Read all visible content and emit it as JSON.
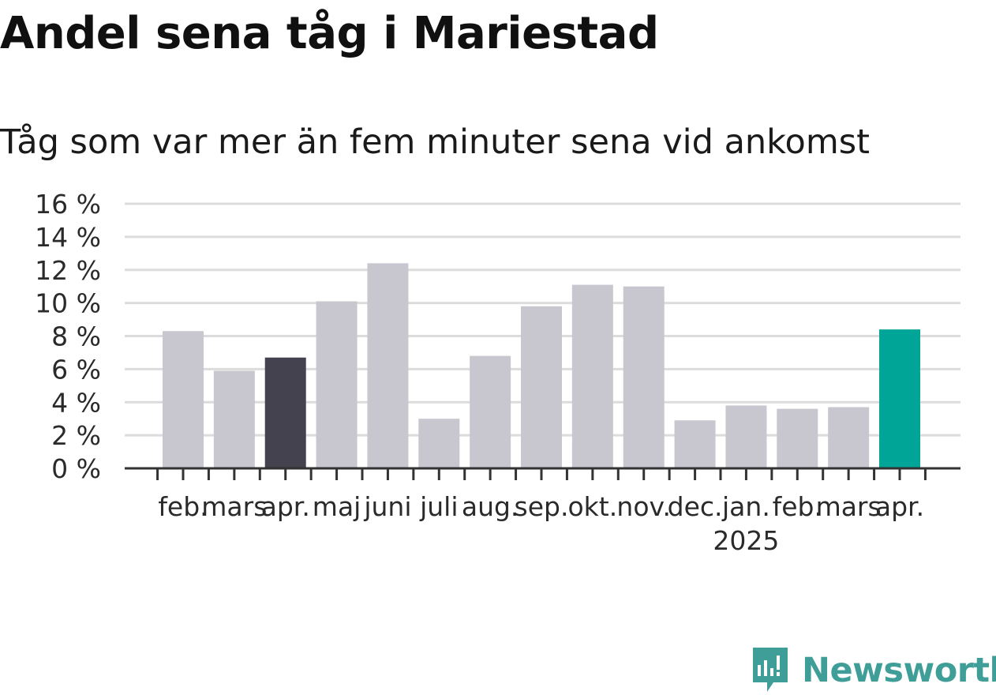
{
  "chart_data": {
    "type": "bar",
    "title": "Andel sena tåg i Mariestad",
    "subtitle": "Tåg som var mer än fem minuter sena vid ankomst",
    "categories": [
      "feb.",
      "mars",
      "apr.",
      "maj",
      "juni",
      "juli",
      "aug.",
      "sep.",
      "okt.",
      "nov.",
      "dec.",
      "jan.",
      "feb.",
      "mars",
      "apr."
    ],
    "year_labels": [
      {
        "index": 11,
        "label": "2025"
      }
    ],
    "values": [
      8.3,
      5.9,
      6.7,
      10.1,
      12.4,
      3.0,
      6.8,
      9.8,
      11.1,
      11.0,
      2.9,
      3.8,
      3.6,
      3.7,
      8.4
    ],
    "highlight": {
      "2": "dark",
      "14": "accent"
    },
    "colors": {
      "default": "#c8c7d0",
      "dark": "#43424e",
      "accent": "#00a598",
      "grid": "#dcdcdc",
      "axis": "#333333"
    },
    "yticks": [
      "0 %",
      "2 %",
      "4 %",
      "6 %",
      "8 %",
      "10 %",
      "12 %",
      "14 %",
      "16 %"
    ],
    "ylim": [
      0,
      16
    ],
    "grid": true,
    "xlabel": "",
    "ylabel": ""
  },
  "brand": {
    "name": "Newsworthy",
    "color": "#3f9e97"
  }
}
